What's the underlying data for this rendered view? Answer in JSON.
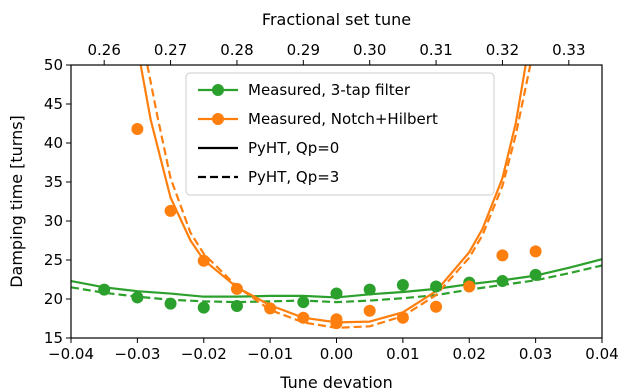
{
  "chart_data": {
    "type": "line",
    "title": "",
    "xlabel": "Tune devation",
    "ylabel": "Damping time [turns]",
    "top_xlabel": "Fractional set tune",
    "xlim": [
      -0.04,
      0.04
    ],
    "ylim": [
      15,
      50
    ],
    "x_ticks": [
      -0.04,
      -0.03,
      -0.02,
      -0.01,
      0.0,
      0.01,
      0.02,
      0.03,
      0.04
    ],
    "x_tick_labels": [
      "−0.04",
      "−0.03",
      "−0.02",
      "−0.01",
      "0.00",
      "0.01",
      "0.02",
      "0.03",
      "0.04"
    ],
    "y_ticks": [
      15,
      20,
      25,
      30,
      35,
      40,
      45,
      50
    ],
    "y_tick_labels": [
      "15",
      "20",
      "25",
      "30",
      "35",
      "40",
      "45",
      "50"
    ],
    "top_x_ticks": [
      0.26,
      0.27,
      0.28,
      0.29,
      0.3,
      0.31,
      0.32,
      0.33
    ],
    "top_x_tick_labels": [
      "0.26",
      "0.27",
      "0.28",
      "0.29",
      "0.30",
      "0.31",
      "0.32",
      "0.33"
    ],
    "top_x_offset": 0.295,
    "legend_position": "top-center",
    "grid": false,
    "legend": [
      {
        "label": "Measured, 3-tap filter",
        "kind": "line-marker",
        "color": "#2ca02c",
        "dash": false
      },
      {
        "label": "Measured, Notch+Hilbert",
        "kind": "line-marker",
        "color": "#ff7f0e",
        "dash": false
      },
      {
        "label": "PyHT, Qp=0",
        "kind": "line",
        "color": "#000000",
        "dash": false
      },
      {
        "label": "PyHT, Qp=3",
        "kind": "line",
        "color": "#000000",
        "dash": true
      }
    ],
    "series": [
      {
        "name": "Measured, 3-tap filter",
        "kind": "scatter",
        "color": "#2ca02c",
        "x": [
          -0.035,
          -0.03,
          -0.025,
          -0.02,
          -0.015,
          -0.005,
          0.0,
          0.005,
          0.01,
          0.015,
          0.02,
          0.025,
          0.03
        ],
        "y": [
          21.2,
          20.2,
          19.4,
          18.9,
          19.1,
          19.6,
          20.7,
          21.2,
          21.8,
          21.6,
          22.1,
          22.3,
          23.1
        ]
      },
      {
        "name": "Measured, Notch+Hilbert",
        "kind": "scatter",
        "color": "#ff7f0e",
        "x": [
          -0.03,
          -0.025,
          -0.02,
          -0.015,
          -0.01,
          -0.005,
          0.0,
          0.0,
          0.005,
          0.01,
          0.015,
          0.02,
          0.025,
          0.03
        ],
        "y": [
          41.8,
          31.3,
          24.9,
          21.3,
          18.8,
          17.6,
          17.4,
          16.9,
          18.5,
          17.6,
          19.0,
          21.6,
          25.6,
          26.1
        ]
      },
      {
        "name": "PyHT, Qp=0 (3-tap)",
        "kind": "line",
        "color": "#2ca02c",
        "dash": false,
        "x": [
          -0.04,
          -0.035,
          -0.03,
          -0.025,
          -0.02,
          -0.015,
          -0.01,
          -0.005,
          0.0,
          0.005,
          0.01,
          0.015,
          0.02,
          0.025,
          0.03,
          0.035,
          0.04
        ],
        "y": [
          22.3,
          21.5,
          21.0,
          20.7,
          20.3,
          20.3,
          20.4,
          20.4,
          20.2,
          20.6,
          20.9,
          21.3,
          21.9,
          22.4,
          23.0,
          24.0,
          25.1
        ]
      },
      {
        "name": "PyHT, Qp=3 (3-tap)",
        "kind": "line",
        "color": "#2ca02c",
        "dash": true,
        "x": [
          -0.04,
          -0.035,
          -0.03,
          -0.025,
          -0.02,
          -0.015,
          -0.01,
          -0.005,
          0.0,
          0.005,
          0.01,
          0.015,
          0.02,
          0.025,
          0.03,
          0.035,
          0.04
        ],
        "y": [
          21.5,
          20.8,
          20.3,
          19.9,
          19.7,
          19.6,
          19.7,
          19.8,
          19.6,
          19.8,
          20.1,
          20.5,
          21.2,
          21.8,
          22.4,
          23.3,
          24.3
        ]
      },
      {
        "name": "PyHT, Qp=0 (Notch+Hilbert)",
        "kind": "line",
        "color": "#ff7f0e",
        "dash": false,
        "x": [
          -0.0295,
          -0.028,
          -0.025,
          -0.022,
          -0.02,
          -0.015,
          -0.01,
          -0.005,
          0.0,
          0.005,
          0.01,
          0.015,
          0.02,
          0.022,
          0.025,
          0.027,
          0.0285
        ],
        "y": [
          50.0,
          43.0,
          33.0,
          27.5,
          25.0,
          21.5,
          19.2,
          17.6,
          17.0,
          17.1,
          18.3,
          21.0,
          26.0,
          29.0,
          35.5,
          42.5,
          50.0
        ]
      },
      {
        "name": "PyHT, Qp=3 (Notch+Hilbert)",
        "kind": "line",
        "color": "#ff7f0e",
        "dash": true,
        "x": [
          -0.0285,
          -0.027,
          -0.025,
          -0.022,
          -0.02,
          -0.015,
          -0.01,
          -0.005,
          0.0,
          0.005,
          0.01,
          0.015,
          0.02,
          0.022,
          0.025,
          0.027,
          0.0292
        ],
        "y": [
          50.0,
          43.5,
          35.5,
          28.5,
          25.8,
          21.6,
          18.6,
          17.0,
          16.3,
          16.5,
          17.8,
          20.5,
          25.3,
          28.2,
          34.5,
          41.0,
          50.0
        ]
      }
    ]
  }
}
